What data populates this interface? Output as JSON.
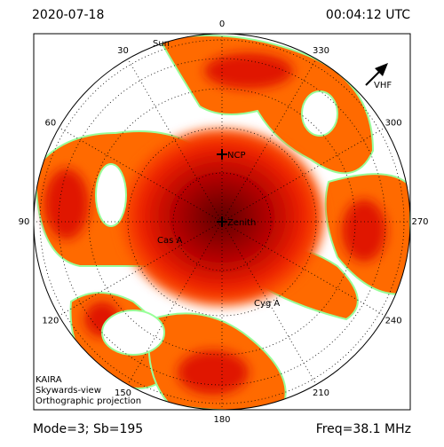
{
  "header": {
    "date": "2020-07-18",
    "time": "00:04:12 UTC"
  },
  "footer": {
    "mode": "Mode=3; Sb=195",
    "freq": "Freq=38.1 MHz"
  },
  "info": [
    "KAIRA",
    "Skywards-view",
    "Orthographic projection"
  ],
  "azimuth_labels": [
    0,
    30,
    60,
    90,
    120,
    150,
    180,
    210,
    240,
    270,
    300,
    330
  ],
  "sources": [
    {
      "label": "NCP",
      "marker": true
    },
    {
      "label": "Zenith",
      "marker": true
    },
    {
      "label": "Cas A",
      "marker": false
    },
    {
      "label": "Cyg A",
      "marker": false
    },
    {
      "label": "Sun",
      "marker": false
    }
  ],
  "arrow_label": "VHF"
}
